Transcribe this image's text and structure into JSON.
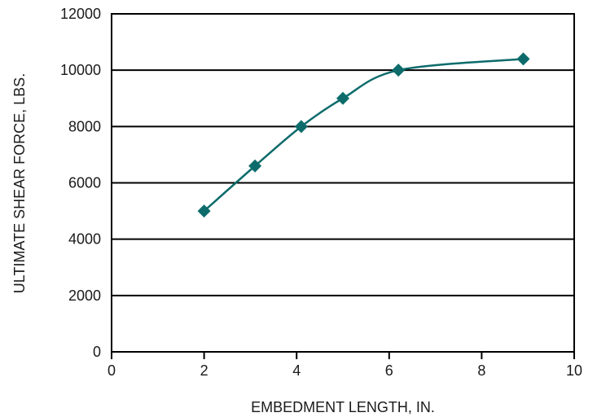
{
  "chart_data": {
    "type": "line",
    "xlabel": "EMBEDMENT LENGTH, IN.",
    "ylabel": "ULTIMATE SHEAR FORCE, LBS.",
    "xlim": [
      0,
      10
    ],
    "ylim": [
      0,
      12000
    ],
    "x_ticks": [
      "0",
      "2",
      "4",
      "6",
      "8",
      "10"
    ],
    "y_ticks": [
      "0",
      "2000",
      "4000",
      "6000",
      "8000",
      "10000",
      "12000"
    ],
    "grid": "horizontal",
    "series": [
      {
        "x": [
          2,
          3.1,
          4.1,
          5,
          6.2,
          8.9
        ],
        "y": [
          5000,
          6600,
          8000,
          9000,
          10000,
          10400
        ],
        "marker": "diamond",
        "smooth": true,
        "color": "#0d6b6b"
      }
    ]
  }
}
